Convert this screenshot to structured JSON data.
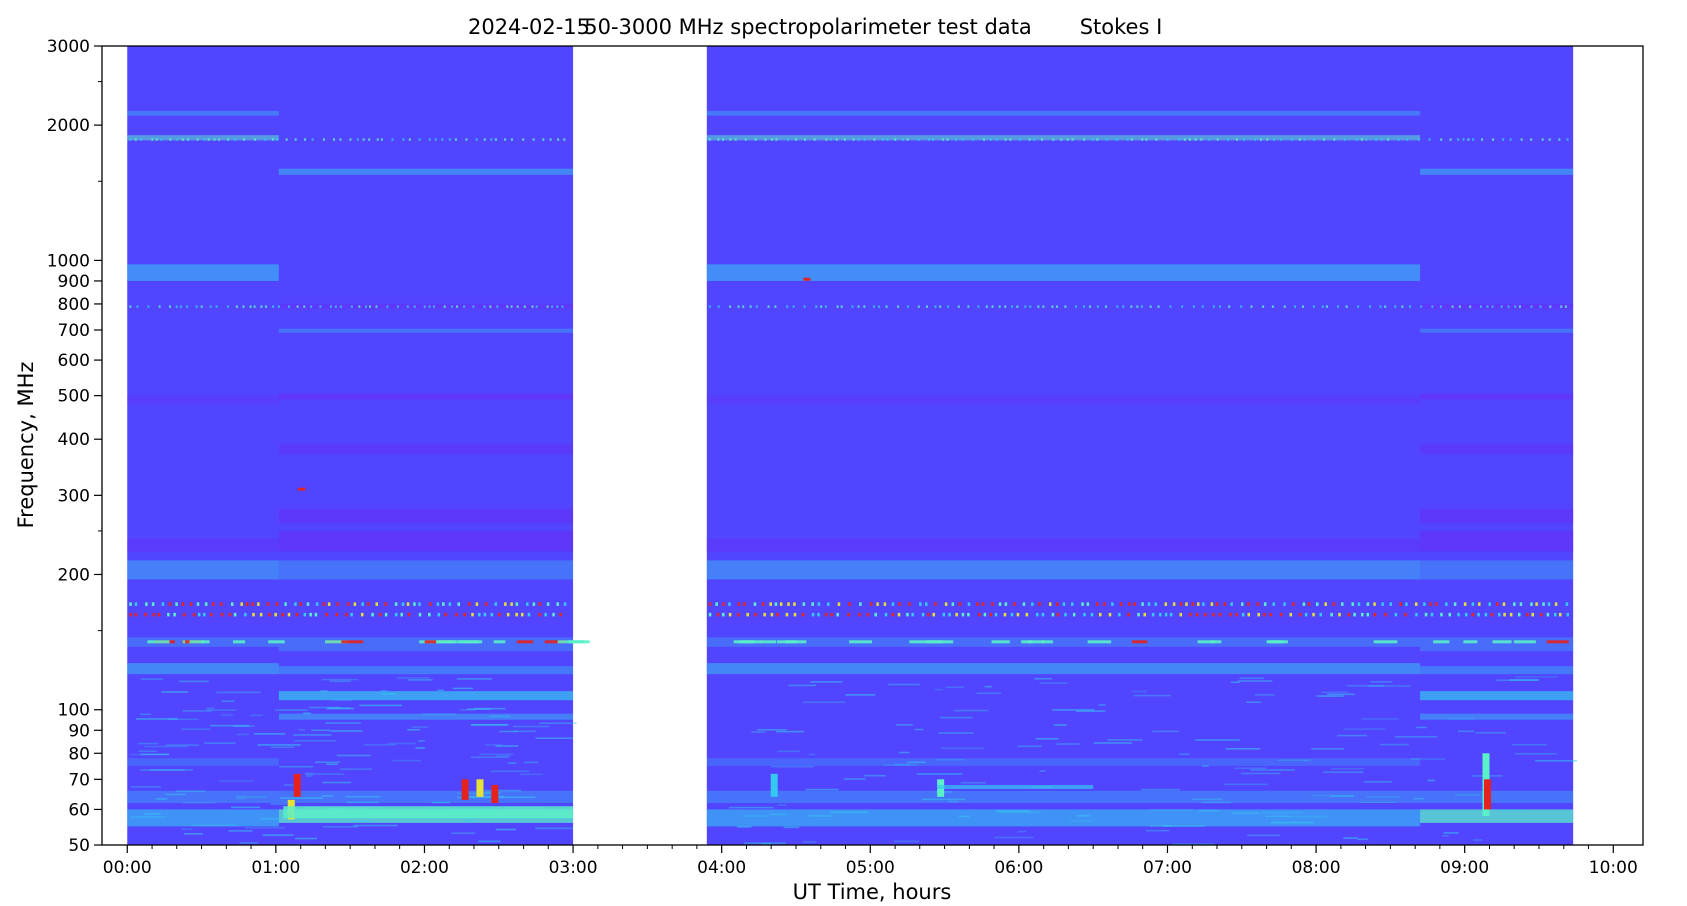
{
  "chart_data": {
    "type": "heatmap",
    "title_parts": [
      "2024-02-15",
      "50-3000 MHz spectropolarimeter test data",
      "Stokes I"
    ],
    "xlabel": "UT Time, hours",
    "ylabel": "Frequency, MHz",
    "x_range_hours": [
      -0.17,
      10.2
    ],
    "y_range_mhz": [
      50,
      3000
    ],
    "y_scale": "log",
    "x_ticks": [
      {
        "hour": 0,
        "label": "00:00"
      },
      {
        "hour": 1,
        "label": "01:00"
      },
      {
        "hour": 2,
        "label": "02:00"
      },
      {
        "hour": 3,
        "label": "03:00"
      },
      {
        "hour": 4,
        "label": "04:00"
      },
      {
        "hour": 5,
        "label": "05:00"
      },
      {
        "hour": 6,
        "label": "06:00"
      },
      {
        "hour": 7,
        "label": "07:00"
      },
      {
        "hour": 8,
        "label": "08:00"
      },
      {
        "hour": 9,
        "label": "09:00"
      },
      {
        "hour": 10,
        "label": "10:00"
      }
    ],
    "x_minor_ticks_hours": [
      0.167,
      0.333,
      0.5,
      0.667,
      0.833,
      1.167,
      1.333,
      1.5,
      1.667,
      1.833,
      2.167,
      2.333,
      2.5,
      2.667,
      2.833,
      3.167,
      3.333,
      3.5,
      3.667,
      3.833,
      4.167,
      4.333,
      4.5,
      4.667,
      4.833,
      5.167,
      5.333,
      5.5,
      5.667,
      5.833,
      6.167,
      6.333,
      6.5,
      6.667,
      6.833,
      7.167,
      7.333,
      7.5,
      7.667,
      7.833,
      8.167,
      8.333,
      8.5,
      8.667,
      8.833,
      9.167,
      9.333,
      9.5,
      9.667,
      9.833
    ],
    "y_ticks": [
      {
        "mhz": 50,
        "label": "50"
      },
      {
        "mhz": 60,
        "label": "60"
      },
      {
        "mhz": 70,
        "label": "70"
      },
      {
        "mhz": 80,
        "label": "80"
      },
      {
        "mhz": 90,
        "label": "90"
      },
      {
        "mhz": 100,
        "label": "100"
      },
      {
        "mhz": 200,
        "label": "200"
      },
      {
        "mhz": 300,
        "label": "300"
      },
      {
        "mhz": 400,
        "label": "400"
      },
      {
        "mhz": 500,
        "label": "500"
      },
      {
        "mhz": 600,
        "label": "600"
      },
      {
        "mhz": 700,
        "label": "700"
      },
      {
        "mhz": 800,
        "label": "800"
      },
      {
        "mhz": 900,
        "label": "900"
      },
      {
        "mhz": 1000,
        "label": "1000"
      },
      {
        "mhz": 2000,
        "label": "2000"
      },
      {
        "mhz": 3000,
        "label": "3000"
      }
    ],
    "y_minor_ticks_mhz": [
      150,
      250,
      1500,
      2500
    ],
    "colormap": "rainbow",
    "colors": {
      "background": "#5245ff",
      "deep": "#6a2cf6",
      "cyan": "#35c8f0",
      "aqua": "#5af0c8",
      "red": "#e4231f",
      "yellow": "#e6e235"
    },
    "observation_blocks_hours": [
      [
        0.0,
        3.0
      ],
      [
        3.9,
        9.73
      ]
    ],
    "segments": [
      {
        "from_hour": 0.0,
        "to_hour": 1.02,
        "level": "quiet"
      },
      {
        "from_hour": 1.02,
        "to_hour": 3.0,
        "level": "elevated"
      },
      {
        "from_hour": 3.9,
        "to_hour": 8.7,
        "level": "quiet"
      },
      {
        "from_hour": 8.7,
        "to_hour": 9.73,
        "level": "elevated"
      }
    ]
  }
}
